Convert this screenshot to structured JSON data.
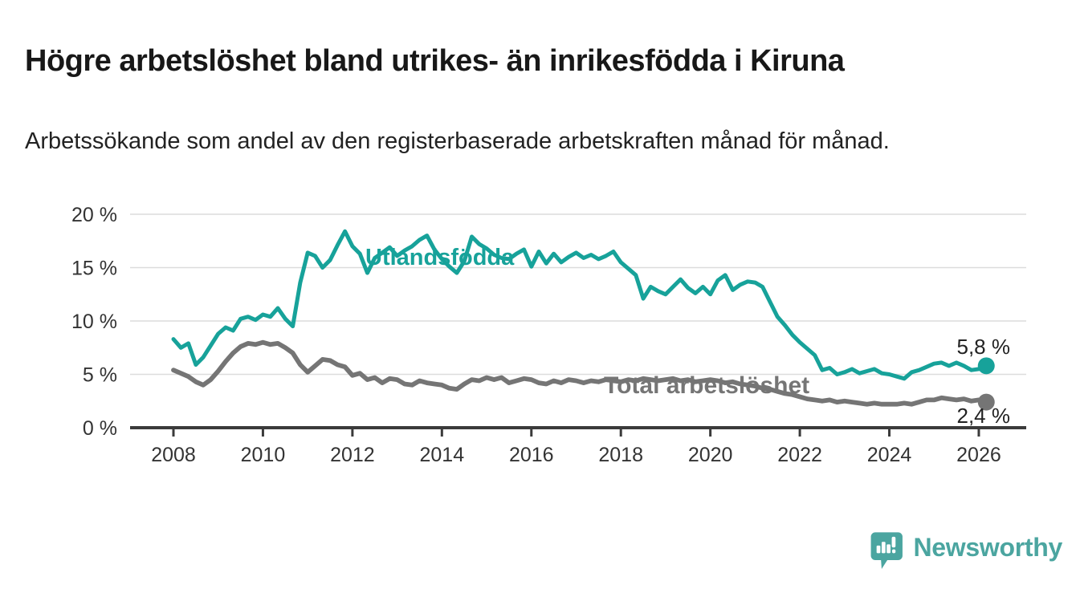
{
  "title": "Högre arbetslöshet bland utrikes- än inrikesfödda i Kiruna",
  "subtitle": "Arbetssökande som andel av den registerbaserade arbetskraften månad för månad.",
  "branding": {
    "logo_text": "Newsworthy",
    "logo_icon": "speech-bubble-bar-chart-icon",
    "color": "#4ba5a0"
  },
  "colors": {
    "utlandsfodda": "#17a29a",
    "total": "#757575",
    "axis": "#3b3b3b",
    "grid": "#dcdcdc",
    "tick_text": "#333333",
    "end_label_text": "#222222"
  },
  "chart_data": {
    "type": "line",
    "title": "Högre arbetslöshet bland utrikes- än inrikesfödda i Kiruna",
    "subtitle": "Arbetssökande som andel av den registerbaserade arbetskraften månad för månad.",
    "ylim": [
      0,
      20
    ],
    "grid": "horizontal",
    "legend_position": "inline-labels",
    "x_start": 2008.0,
    "x_step_years": 0.166667,
    "x_ticks": [
      {
        "v": 2008,
        "label": "2008"
      },
      {
        "v": 2010,
        "label": "2010"
      },
      {
        "v": 2012,
        "label": "2012"
      },
      {
        "v": 2014,
        "label": "2014"
      },
      {
        "v": 2016,
        "label": "2016"
      },
      {
        "v": 2018,
        "label": "2018"
      },
      {
        "v": 2020,
        "label": "2020"
      },
      {
        "v": 2022,
        "label": "2022"
      },
      {
        "v": 2024,
        "label": "2024"
      },
      {
        "v": 2026,
        "label": "2026"
      }
    ],
    "y_ticks": [
      {
        "v": 0,
        "label": "0 %"
      },
      {
        "v": 5,
        "label": "5 %"
      },
      {
        "v": 10,
        "label": "10 %"
      },
      {
        "v": 15,
        "label": "15 %"
      },
      {
        "v": 20,
        "label": "20 %"
      }
    ],
    "series": [
      {
        "name": "Utlandsfödda",
        "color": "#17a29a",
        "end_label": "5,8 %",
        "end_value": 5.8,
        "values": [
          8.3,
          7.5,
          7.9,
          5.9,
          6.6,
          7.7,
          8.8,
          9.4,
          9.1,
          10.2,
          10.4,
          10.1,
          10.6,
          10.4,
          11.2,
          10.2,
          9.5,
          13.6,
          16.4,
          16.1,
          15.0,
          15.7,
          17.1,
          18.4,
          17.0,
          16.3,
          14.5,
          15.9,
          16.4,
          16.9,
          16.1,
          16.6,
          17.0,
          17.6,
          18.0,
          16.7,
          15.8,
          15.1,
          14.5,
          15.6,
          17.9,
          17.2,
          16.8,
          16.2,
          15.9,
          15.8,
          16.3,
          16.7,
          15.1,
          16.5,
          15.4,
          16.3,
          15.5,
          16.0,
          16.4,
          15.9,
          16.2,
          15.8,
          16.1,
          16.5,
          15.5,
          14.9,
          14.3,
          12.1,
          13.2,
          12.8,
          12.5,
          13.2,
          13.9,
          13.1,
          12.6,
          13.2,
          12.5,
          13.8,
          14.3,
          12.9,
          13.4,
          13.7,
          13.6,
          13.2,
          11.8,
          10.4,
          9.6,
          8.7,
          8.0,
          7.4,
          6.8,
          5.4,
          5.6,
          5.0,
          5.2,
          5.5,
          5.1,
          5.3,
          5.5,
          5.1,
          5.0,
          4.8,
          4.6,
          5.2,
          5.4,
          5.7,
          6.0,
          6.1,
          5.8,
          6.1,
          5.8,
          5.4,
          5.5,
          5.8
        ]
      },
      {
        "name": "Total arbetslöshet",
        "color": "#757575",
        "end_label": "2,4 %",
        "end_value": 2.4,
        "values": [
          5.4,
          5.1,
          4.8,
          4.3,
          4.0,
          4.5,
          5.3,
          6.2,
          7.0,
          7.6,
          7.9,
          7.8,
          8.0,
          7.8,
          7.9,
          7.5,
          7.0,
          5.9,
          5.2,
          5.8,
          6.4,
          6.3,
          5.9,
          5.7,
          4.9,
          5.1,
          4.5,
          4.7,
          4.2,
          4.6,
          4.5,
          4.1,
          4.0,
          4.4,
          4.2,
          4.1,
          4.0,
          3.7,
          3.6,
          4.1,
          4.5,
          4.4,
          4.7,
          4.5,
          4.7,
          4.2,
          4.4,
          4.6,
          4.5,
          4.2,
          4.1,
          4.4,
          4.2,
          4.5,
          4.4,
          4.2,
          4.4,
          4.3,
          4.5,
          4.4,
          4.3,
          4.5,
          4.4,
          4.6,
          4.5,
          4.4,
          4.5,
          4.6,
          4.4,
          4.5,
          4.3,
          4.4,
          4.5,
          4.4,
          4.2,
          4.3,
          4.1,
          4.0,
          3.9,
          3.7,
          3.6,
          3.4,
          3.2,
          3.1,
          2.9,
          2.7,
          2.6,
          2.5,
          2.6,
          2.4,
          2.5,
          2.4,
          2.3,
          2.2,
          2.3,
          2.2,
          2.2,
          2.2,
          2.3,
          2.2,
          2.4,
          2.6,
          2.6,
          2.8,
          2.7,
          2.6,
          2.7,
          2.5,
          2.6,
          2.4
        ]
      }
    ]
  }
}
